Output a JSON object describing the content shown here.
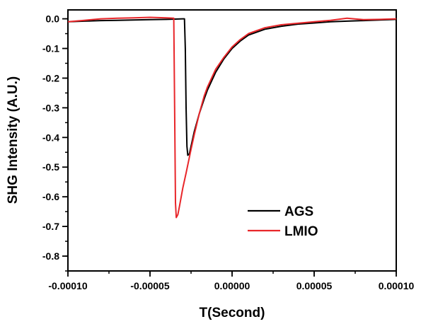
{
  "chart_data": {
    "type": "line",
    "xlabel": "T(Second)",
    "ylabel": "SHG Intensity (A.U.)",
    "xlim": [
      -0.0001,
      0.0001
    ],
    "ylim": [
      -0.85,
      0.03
    ],
    "x_ticks": [
      -0.0001,
      -5e-05,
      0,
      5e-05,
      0.0001
    ],
    "x_tick_labels": [
      "-0.00010",
      "-0.00005",
      "0.00000",
      "0.00005",
      "0.00010"
    ],
    "y_ticks": [
      0.0,
      -0.1,
      -0.2,
      -0.3,
      -0.4,
      -0.5,
      -0.6,
      -0.7,
      -0.8
    ],
    "y_tick_labels": [
      "0.0",
      "-0.1",
      "-0.2",
      "-0.3",
      "-0.4",
      "-0.5",
      "-0.6",
      "-0.7",
      "-0.8"
    ],
    "grid": false,
    "legend_position": "bottom-right",
    "series": [
      {
        "name": "AGS",
        "color": "#000000",
        "x": [
          -0.0001,
          -9e-05,
          -8e-05,
          -7e-05,
          -6e-05,
          -5e-05,
          -4e-05,
          -3.5e-05,
          -3e-05,
          -2.9e-05,
          -2.85e-05,
          -2.8e-05,
          -2.75e-05,
          -2.7e-05,
          -2.6e-05,
          -2.5e-05,
          -2.3e-05,
          -2e-05,
          -1.7e-05,
          -1.5e-05,
          -1e-05,
          -5e-06,
          0,
          5e-06,
          1e-05,
          2e-05,
          3e-05,
          4e-05,
          5e-05,
          6e-05,
          7e-05,
          8e-05,
          9e-05,
          0.0001
        ],
        "y": [
          -0.01,
          -0.008,
          -0.006,
          -0.005,
          -0.004,
          -0.003,
          -0.002,
          -0.001,
          0.0,
          0.0,
          -0.1,
          -0.3,
          -0.43,
          -0.46,
          -0.455,
          -0.43,
          -0.38,
          -0.32,
          -0.27,
          -0.24,
          -0.18,
          -0.135,
          -0.1,
          -0.075,
          -0.055,
          -0.035,
          -0.025,
          -0.018,
          -0.014,
          -0.01,
          -0.008,
          -0.006,
          -0.004,
          -0.002
        ]
      },
      {
        "name": "LMIO",
        "color": "#e8262a",
        "x": [
          -0.0001,
          -9e-05,
          -8e-05,
          -7e-05,
          -6e-05,
          -5e-05,
          -4e-05,
          -3.55e-05,
          -3.5e-05,
          -3.45e-05,
          -3.4e-05,
          -3.3e-05,
          -3.2e-05,
          -3e-05,
          -2.8e-05,
          -2.5e-05,
          -2.3e-05,
          -2e-05,
          -1.7e-05,
          -1.5e-05,
          -1e-05,
          -5e-06,
          0,
          5e-06,
          1e-05,
          2e-05,
          3e-05,
          4e-05,
          5e-05,
          6e-05,
          7e-05,
          8e-05,
          9e-05,
          0.0001
        ],
        "y": [
          -0.01,
          -0.005,
          0.0,
          0.002,
          0.003,
          0.005,
          0.003,
          0.002,
          -0.3,
          -0.62,
          -0.67,
          -0.66,
          -0.63,
          -0.57,
          -0.52,
          -0.44,
          -0.39,
          -0.32,
          -0.26,
          -0.23,
          -0.17,
          -0.13,
          -0.095,
          -0.07,
          -0.05,
          -0.03,
          -0.02,
          -0.015,
          -0.01,
          -0.005,
          0.002,
          -0.003,
          -0.002,
          0.0
        ]
      }
    ]
  }
}
